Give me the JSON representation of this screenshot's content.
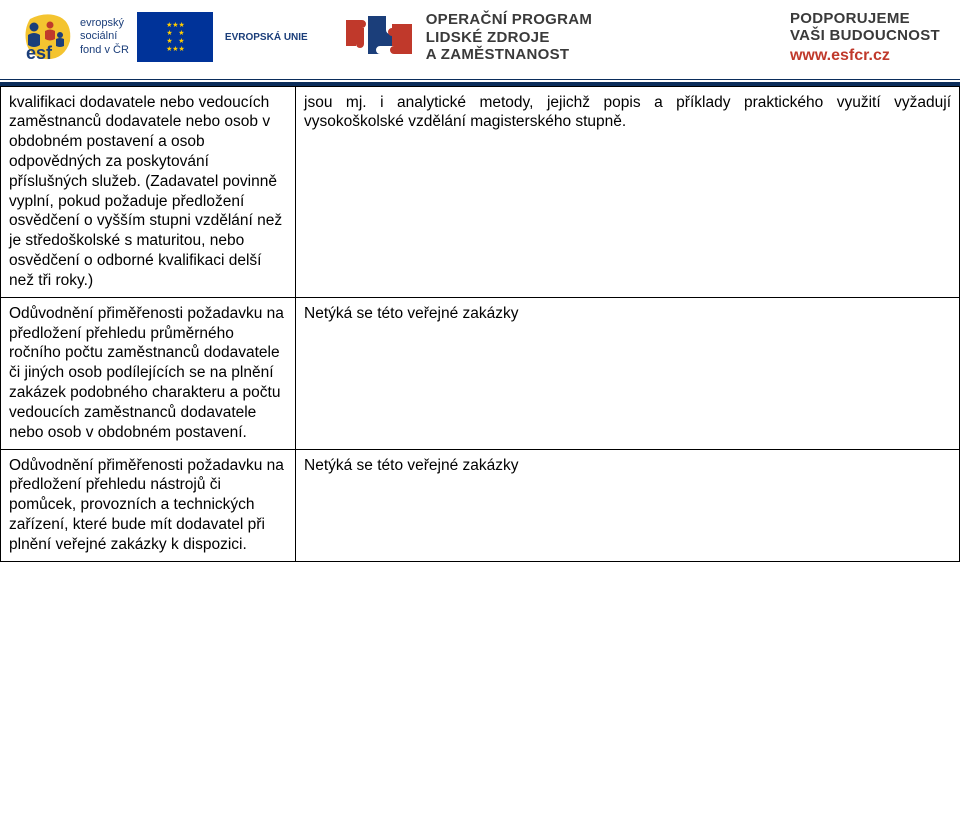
{
  "header": {
    "esf_lines": "evropský\nsociální\nfond v ČR",
    "eu_label": "EVROPSKÁ UNIE",
    "op_title": "OPERAČNÍ PROGRAM\nLIDSKÉ ZDROJE\nA ZAMĚSTNANOST",
    "support_title": "PODPORUJEME\nVAŠI BUDOUCNOST",
    "support_url": "www.esfcr.cz"
  },
  "table": {
    "rows": [
      {
        "left": "kvalifikaci dodavatele nebo vedoucích zaměstnanců dodavatele nebo osob v obdobném postavení a osob odpovědných za poskytování příslušných služeb. (Zadavatel povinně vyplní, pokud požaduje předložení osvědčení o vyšším stupni vzdělání než je středoškolské s maturitou, nebo osvědčení o odborné kvalifikaci delší než tři roky.)",
        "right": "jsou mj. i analytické metody, jejichž popis a příklady praktického využití vyžadují vysokoškolské vzdělání magisterského stupně."
      },
      {
        "left": "Odůvodnění přiměřenosti požadavku na předložení přehledu průměrného ročního počtu zaměstnanců dodavatele či jiných osob podílejících se na plnění zakázek podobného charakteru a počtu vedoucích zaměstnanců dodavatele nebo osob v obdobném postavení.",
        "right": "Netýká se této veřejné zakázky"
      },
      {
        "left": "Odůvodnění přiměřenosti požadavku na předložení přehledu nástrojů či pomůcek, provozních a technických zařízení, které bude mít dodavatel při plnění veřejné zakázky k dispozici.",
        "right": "Netýká se této veřejné zakázky"
      }
    ]
  }
}
